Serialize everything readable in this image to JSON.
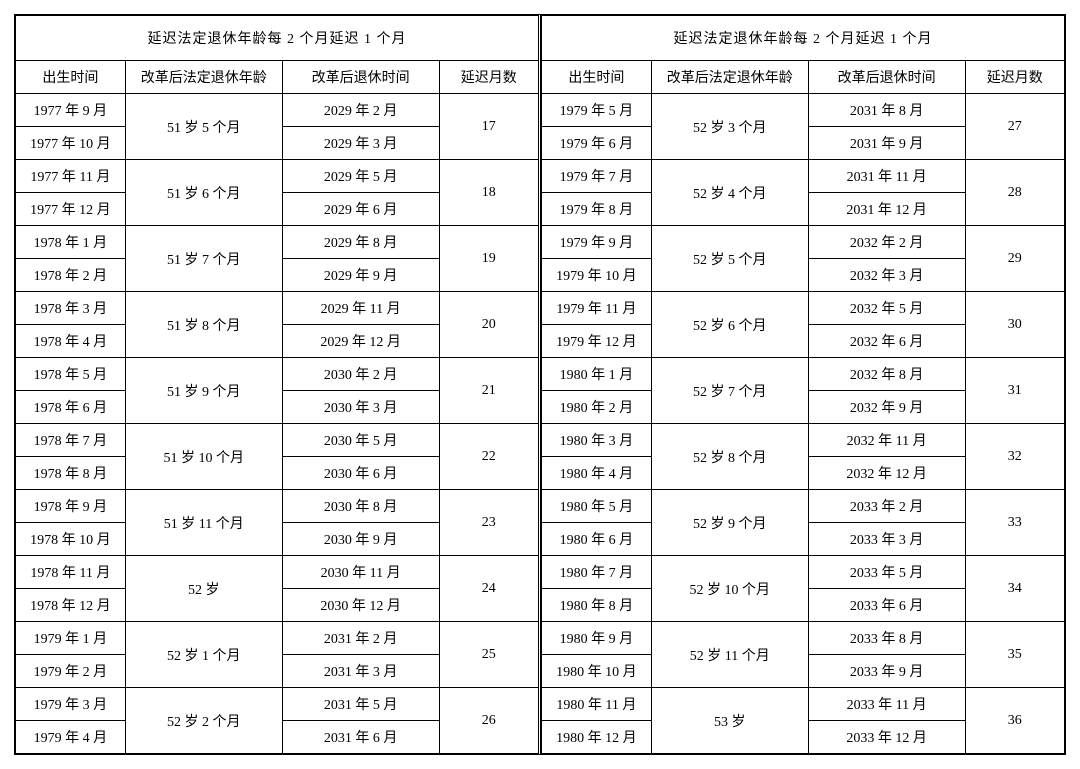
{
  "title": "延迟法定退休年龄每 2 个月延迟 1 个月",
  "headers": {
    "birth": "出生时间",
    "age": "改革后法定退休年龄",
    "retire": "改革后退休时间",
    "delay": "延迟月数"
  },
  "left": [
    {
      "birth1": "1977 年 9 月",
      "birth2": "1977 年 10 月",
      "age": "51 岁 5 个月",
      "ret1": "2029 年 2 月",
      "ret2": "2029 年 3 月",
      "delay": "17"
    },
    {
      "birth1": "1977 年 11 月",
      "birth2": "1977 年 12 月",
      "age": "51 岁 6 个月",
      "ret1": "2029 年 5 月",
      "ret2": "2029 年 6 月",
      "delay": "18"
    },
    {
      "birth1": "1978 年 1 月",
      "birth2": "1978 年 2 月",
      "age": "51 岁 7 个月",
      "ret1": "2029 年 8 月",
      "ret2": "2029 年 9 月",
      "delay": "19"
    },
    {
      "birth1": "1978 年 3 月",
      "birth2": "1978 年 4 月",
      "age": "51 岁 8 个月",
      "ret1": "2029 年 11 月",
      "ret2": "2029 年 12 月",
      "delay": "20"
    },
    {
      "birth1": "1978 年 5 月",
      "birth2": "1978 年 6 月",
      "age": "51 岁 9 个月",
      "ret1": "2030 年 2 月",
      "ret2": "2030 年 3 月",
      "delay": "21"
    },
    {
      "birth1": "1978 年 7 月",
      "birth2": "1978 年 8 月",
      "age": "51 岁 10 个月",
      "ret1": "2030 年 5 月",
      "ret2": "2030 年 6 月",
      "delay": "22"
    },
    {
      "birth1": "1978 年 9 月",
      "birth2": "1978 年 10 月",
      "age": "51 岁 11 个月",
      "ret1": "2030 年 8 月",
      "ret2": "2030 年 9 月",
      "delay": "23"
    },
    {
      "birth1": "1978 年 11 月",
      "birth2": "1978 年 12 月",
      "age": "52 岁",
      "ret1": "2030 年 11 月",
      "ret2": "2030 年 12 月",
      "delay": "24"
    },
    {
      "birth1": "1979 年 1 月",
      "birth2": "1979 年 2 月",
      "age": "52 岁 1 个月",
      "ret1": "2031 年 2 月",
      "ret2": "2031 年 3 月",
      "delay": "25"
    },
    {
      "birth1": "1979 年 3 月",
      "birth2": "1979 年 4 月",
      "age": "52 岁 2 个月",
      "ret1": "2031 年 5 月",
      "ret2": "2031 年 6 月",
      "delay": "26"
    }
  ],
  "right": [
    {
      "birth1": "1979 年 5 月",
      "birth2": "1979 年 6 月",
      "age": "52 岁 3 个月",
      "ret1": "2031 年 8 月",
      "ret2": "2031 年 9 月",
      "delay": "27"
    },
    {
      "birth1": "1979 年 7 月",
      "birth2": "1979 年 8 月",
      "age": "52 岁 4 个月",
      "ret1": "2031 年 11 月",
      "ret2": "2031 年 12 月",
      "delay": "28"
    },
    {
      "birth1": "1979 年 9 月",
      "birth2": "1979 年 10 月",
      "age": "52 岁 5 个月",
      "ret1": "2032 年 2 月",
      "ret2": "2032 年 3 月",
      "delay": "29"
    },
    {
      "birth1": "1979 年 11 月",
      "birth2": "1979 年 12 月",
      "age": "52 岁 6 个月",
      "ret1": "2032 年 5 月",
      "ret2": "2032 年 6 月",
      "delay": "30"
    },
    {
      "birth1": "1980 年 1 月",
      "birth2": "1980 年 2 月",
      "age": "52 岁 7 个月",
      "ret1": "2032 年 8 月",
      "ret2": "2032 年 9 月",
      "delay": "31"
    },
    {
      "birth1": "1980 年 3 月",
      "birth2": "1980 年 4 月",
      "age": "52 岁 8 个月",
      "ret1": "2032 年 11 月",
      "ret2": "2032 年 12 月",
      "delay": "32"
    },
    {
      "birth1": "1980 年 5 月",
      "birth2": "1980 年 6 月",
      "age": "52 岁 9 个月",
      "ret1": "2033 年 2 月",
      "ret2": "2033 年 3 月",
      "delay": "33"
    },
    {
      "birth1": "1980 年 7 月",
      "birth2": "1980 年 8 月",
      "age": "52 岁 10 个月",
      "ret1": "2033 年 5 月",
      "ret2": "2033 年 6 月",
      "delay": "34"
    },
    {
      "birth1": "1980 年 9 月",
      "birth2": "1980 年 10 月",
      "age": "52 岁 11 个月",
      "ret1": "2033 年 8 月",
      "ret2": "2033 年 9 月",
      "delay": "35"
    },
    {
      "birth1": "1980 年 11 月",
      "birth2": "1980 年 12 月",
      "age": "53 岁",
      "ret1": "2033 年 11 月",
      "ret2": "2033 年 12 月",
      "delay": "36"
    }
  ]
}
